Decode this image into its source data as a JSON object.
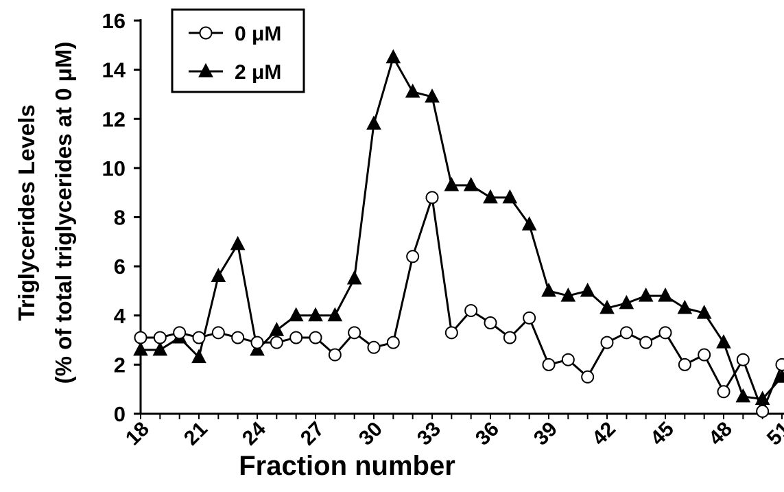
{
  "chart_data": {
    "type": "line",
    "xlabel": "Fraction number",
    "ylabel_line1": "Triglycerides Levels",
    "ylabel_line2": "(% of total triglycerides at 0 μM)",
    "xlim": [
      18,
      51
    ],
    "ylim": [
      0,
      16
    ],
    "x_ticks": [
      18,
      21,
      24,
      27,
      30,
      33,
      36,
      39,
      42,
      45,
      48,
      51
    ],
    "y_ticks": [
      0,
      2,
      4,
      6,
      8,
      10,
      12,
      14,
      16
    ],
    "grid": false,
    "legend_position": "top-left",
    "x": [
      18,
      19,
      20,
      21,
      22,
      23,
      24,
      25,
      26,
      27,
      28,
      29,
      30,
      31,
      32,
      33,
      34,
      35,
      36,
      37,
      38,
      39,
      40,
      41,
      42,
      43,
      44,
      45,
      46,
      47,
      48,
      49,
      50,
      51
    ],
    "series": [
      {
        "name": "0 μM",
        "marker": "open-circle",
        "color": "#000000",
        "values": [
          3.1,
          3.1,
          3.3,
          3.1,
          3.3,
          3.1,
          2.9,
          2.9,
          3.1,
          3.1,
          2.4,
          3.3,
          2.7,
          2.9,
          6.4,
          8.8,
          3.3,
          4.2,
          3.7,
          3.1,
          3.9,
          2.0,
          2.2,
          1.5,
          2.9,
          3.3,
          2.9,
          3.3,
          2.0,
          2.4,
          0.9,
          2.2,
          0.1,
          2.0
        ]
      },
      {
        "name": "2 μM",
        "marker": "filled-triangle",
        "color": "#000000",
        "values": [
          2.6,
          2.6,
          3.1,
          2.3,
          5.6,
          6.9,
          2.6,
          3.4,
          4.0,
          4.0,
          4.0,
          5.5,
          11.8,
          14.5,
          13.1,
          12.9,
          9.3,
          9.3,
          8.8,
          8.8,
          7.7,
          5.0,
          4.8,
          5.0,
          4.3,
          4.5,
          4.8,
          4.8,
          4.3,
          4.1,
          2.9,
          0.7,
          0.6,
          1.5
        ]
      }
    ]
  }
}
